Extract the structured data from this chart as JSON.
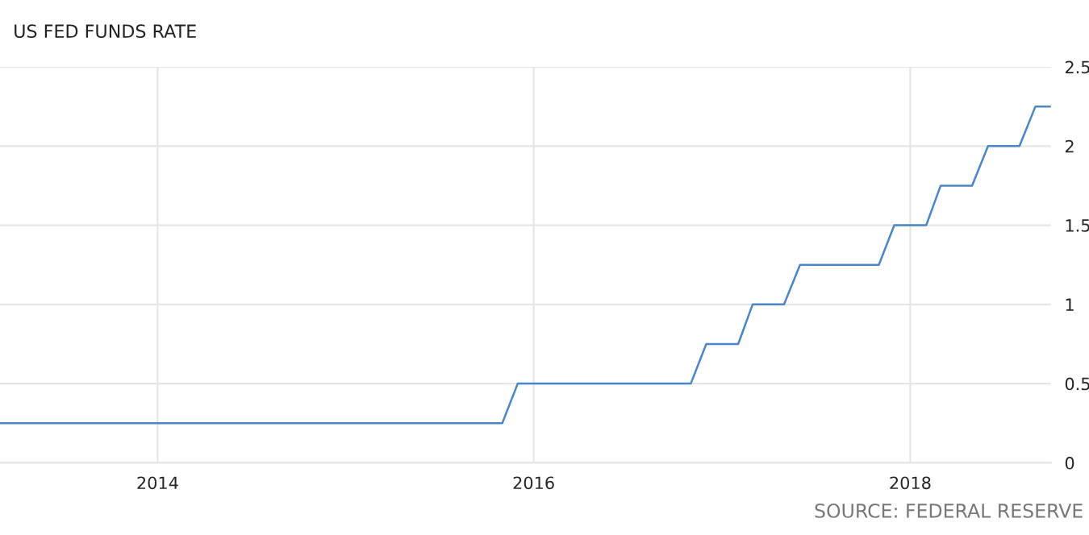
{
  "chart_data": {
    "type": "line",
    "title": "US FED FUNDS RATE",
    "x": [
      "2013-03",
      "2015-11",
      "2015-12",
      "2016-11",
      "2016-12",
      "2017-02",
      "2017-03",
      "2017-05",
      "2017-06",
      "2017-11",
      "2017-12",
      "2018-02",
      "2018-03",
      "2018-05",
      "2018-06",
      "2018-08",
      "2018-09",
      "2018-10"
    ],
    "series": [
      {
        "color": "#4a86c5",
        "values": [
          0.25,
          0.25,
          0.5,
          0.5,
          0.75,
          0.75,
          1,
          1,
          1.25,
          1.25,
          1.5,
          1.5,
          1.75,
          1.75,
          2,
          2,
          2.25,
          2.25
        ]
      }
    ],
    "xlim": [
      "2013-03",
      "2018-10"
    ],
    "xticks": [
      {
        "value": "2014-01",
        "label": "2014"
      },
      {
        "value": "2016-01",
        "label": "2016"
      },
      {
        "value": "2018-01",
        "label": "2018"
      }
    ],
    "ylim": [
      0,
      2.5
    ],
    "yticks": [
      0,
      0.5,
      1,
      1.5,
      2,
      2.5
    ],
    "grid": true,
    "marker": "none",
    "line_style": "solid",
    "annotations": [
      "SOURCE: FEDERAL RESERVE"
    ]
  }
}
